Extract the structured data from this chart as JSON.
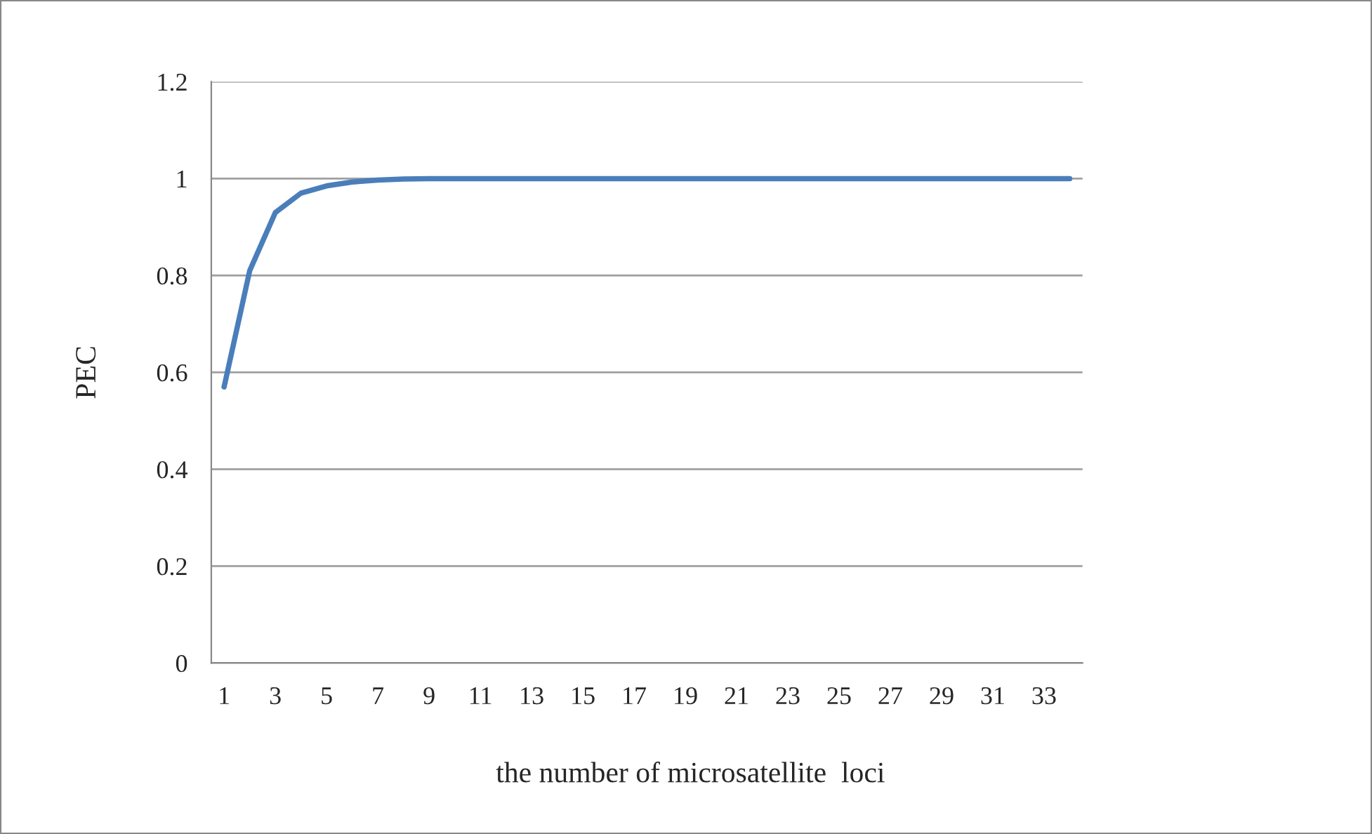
{
  "chart_data": {
    "type": "line",
    "xlabel": "the number of microsatellite  loci",
    "ylabel": "PEC",
    "categories": [
      "1",
      null,
      "3",
      null,
      "5",
      null,
      "7",
      null,
      "9",
      null,
      "11",
      null,
      "13",
      null,
      "15",
      null,
      "17",
      null,
      "19",
      null,
      "21",
      null,
      "23",
      null,
      "25",
      null,
      "27",
      null,
      "29",
      null,
      "31",
      null,
      "33",
      null
    ],
    "series": [
      {
        "color": "#4a7ebb",
        "values": [
          0.57,
          0.81,
          0.93,
          0.97,
          0.985,
          0.993,
          0.997,
          0.999,
          1,
          1,
          1,
          1,
          1,
          1,
          1,
          1,
          1,
          1,
          1,
          1,
          1,
          1,
          1,
          1,
          1,
          1,
          1,
          1,
          1,
          1,
          1,
          1,
          1,
          1
        ]
      }
    ],
    "ylim": [
      0,
      1.2
    ],
    "yticks": [
      0,
      0.2,
      0.4,
      0.6,
      0.8,
      1,
      1.2
    ],
    "grid": "y",
    "legend": false,
    "marker": "none",
    "line_style": "solid"
  }
}
